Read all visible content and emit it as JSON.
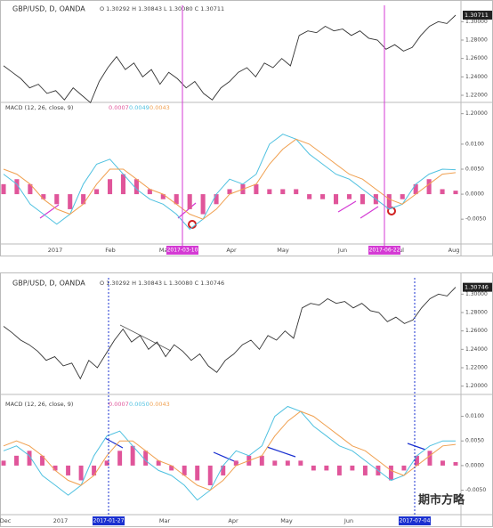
{
  "chart_data": [
    {
      "type": "line",
      "title": "GBP/USD, D, OANDA",
      "subtitle": "O 1.30292 H 1.30843 L 1.30080 C 1.30711",
      "color": "#333333",
      "values": [
        1.252,
        1.245,
        1.238,
        1.228,
        1.232,
        1.222,
        1.225,
        1.215,
        1.228,
        1.22,
        1.212,
        1.235,
        1.25,
        1.262,
        1.248,
        1.255,
        1.24,
        1.248,
        1.232,
        1.245,
        1.238,
        1.228,
        1.235,
        1.222,
        1.215,
        1.228,
        1.235,
        1.245,
        1.25,
        1.24,
        1.255,
        1.25,
        1.26,
        1.252,
        1.285,
        1.29,
        1.288,
        1.295,
        1.29,
        1.292,
        1.285,
        1.29,
        1.282,
        1.28,
        1.27,
        1.275,
        1.268,
        1.272,
        1.285,
        1.295,
        1.3,
        1.298,
        1.30711
      ],
      "value_label": "1.30711",
      "ylim": [
        1.19,
        1.31
      ],
      "yticks": [
        {
          "value": 1.3,
          "label": "1.30000"
        },
        {
          "value": 1.28,
          "label": "1.28000"
        },
        {
          "value": 1.26,
          "label": "1.26000"
        },
        {
          "value": 1.24,
          "label": "1.24000"
        },
        {
          "value": 1.22,
          "label": "1.22000"
        },
        {
          "value": 1.2,
          "label": "1.20000"
        }
      ]
    },
    {
      "type": "macd",
      "title": "MACD (12, 26, close, 9)",
      "histogram": {
        "color": "#e0559a",
        "value_label": "0.0007",
        "values": [
          0.002,
          0.003,
          0.002,
          -0.001,
          -0.002,
          -0.003,
          -0.002,
          0.001,
          0.003,
          0.004,
          0.003,
          0.001,
          -0.001,
          -0.002,
          -0.003,
          -0.004,
          -0.002,
          0.001,
          0.002,
          0.002,
          0.001,
          0.001,
          0.001,
          -0.001,
          -0.001,
          -0.002,
          -0.001,
          -0.002,
          -0.002,
          -0.003,
          -0.001,
          0.002,
          0.003,
          0.001,
          0.0007
        ]
      },
      "series": [
        {
          "color": "#4fc1e0",
          "value_label": "0.0049",
          "values": [
            0.004,
            0.002,
            -0.002,
            -0.004,
            -0.006,
            -0.004,
            0.002,
            0.006,
            0.007,
            0.004,
            0.001,
            -0.001,
            -0.002,
            -0.004,
            -0.007,
            -0.005,
            0.0,
            0.003,
            0.002,
            0.004,
            0.01,
            0.012,
            0.011,
            0.008,
            0.006,
            0.004,
            0.003,
            0.001,
            -0.001,
            -0.003,
            -0.002,
            0.002,
            0.004,
            0.005,
            0.0049
          ]
        },
        {
          "color": "#f0a050",
          "value_label": "0.0043",
          "values": [
            0.005,
            0.004,
            0.002,
            -0.001,
            -0.003,
            -0.004,
            -0.002,
            0.002,
            0.005,
            0.005,
            0.003,
            0.001,
            0.0,
            -0.002,
            -0.004,
            -0.005,
            -0.003,
            0.0,
            0.001,
            0.002,
            0.006,
            0.009,
            0.011,
            0.01,
            0.008,
            0.006,
            0.004,
            0.003,
            0.001,
            -0.001,
            -0.002,
            0.0,
            0.002,
            0.004,
            0.0043
          ]
        }
      ],
      "ylim": [
        -0.0096,
        0.0139
      ],
      "yticks": [
        {
          "value": 0.01,
          "label": "0.0100"
        },
        {
          "value": 0.005,
          "label": "0.0050"
        },
        {
          "value": 0,
          "label": "0.0000"
        },
        {
          "value": -0.005,
          "label": "-0.0050"
        }
      ],
      "x_labels": [
        "2017",
        "Feb",
        "Mar",
        "Apr",
        "May",
        "Jun",
        "Jul",
        "Aug"
      ],
      "markers": [
        "2017-03-10",
        "2017-06-22"
      ],
      "marker_color": "#d43ad4"
    },
    {
      "type": "line",
      "title": "GBP/USD, D, OANDA",
      "subtitle": "O 1.30292 H 1.30843 L 1.30080 C 1.30746",
      "color": "#333333",
      "values": [
        1.265,
        1.258,
        1.25,
        1.245,
        1.238,
        1.228,
        1.232,
        1.222,
        1.225,
        1.208,
        1.228,
        1.22,
        1.235,
        1.25,
        1.262,
        1.248,
        1.255,
        1.24,
        1.248,
        1.232,
        1.245,
        1.238,
        1.228,
        1.235,
        1.222,
        1.215,
        1.228,
        1.235,
        1.245,
        1.25,
        1.24,
        1.255,
        1.25,
        1.26,
        1.252,
        1.285,
        1.29,
        1.288,
        1.295,
        1.29,
        1.292,
        1.285,
        1.29,
        1.282,
        1.28,
        1.27,
        1.275,
        1.268,
        1.272,
        1.285,
        1.295,
        1.3,
        1.298,
        1.30746
      ],
      "value_label": "1.30746",
      "ylim": [
        1.19,
        1.31
      ],
      "yticks": [
        {
          "value": 1.3,
          "label": "1.30000"
        },
        {
          "value": 1.28,
          "label": "1.28000"
        },
        {
          "value": 1.26,
          "label": "1.26000"
        },
        {
          "value": 1.24,
          "label": "1.24000"
        },
        {
          "value": 1.22,
          "label": "1.22000"
        },
        {
          "value": 1.2,
          "label": "1.20000"
        }
      ]
    },
    {
      "type": "macd",
      "title": "MACD (12, 26, close, 9)",
      "histogram": {
        "color": "#e0559a",
        "value_label": "0.0007",
        "values": [
          0.001,
          0.002,
          0.003,
          0.002,
          -0.001,
          -0.002,
          -0.003,
          -0.002,
          0.001,
          0.003,
          0.004,
          0.003,
          0.001,
          -0.001,
          -0.002,
          -0.003,
          -0.004,
          -0.002,
          0.001,
          0.002,
          0.002,
          0.001,
          0.001,
          0.001,
          -0.001,
          -0.001,
          -0.002,
          -0.001,
          -0.002,
          -0.002,
          -0.003,
          -0.001,
          0.002,
          0.003,
          0.001,
          0.0007
        ]
      },
      "series": [
        {
          "color": "#4fc1e0",
          "value_label": "0.0050",
          "values": [
            0.003,
            0.004,
            0.002,
            -0.002,
            -0.004,
            -0.006,
            -0.004,
            0.002,
            0.006,
            0.007,
            0.004,
            0.001,
            -0.001,
            -0.002,
            -0.004,
            -0.007,
            -0.005,
            0.0,
            0.003,
            0.002,
            0.004,
            0.01,
            0.012,
            0.011,
            0.008,
            0.006,
            0.004,
            0.003,
            0.001,
            -0.001,
            -0.003,
            -0.002,
            0.002,
            0.004,
            0.005,
            0.005
          ]
        },
        {
          "color": "#f0a050",
          "value_label": "0.0043",
          "values": [
            0.004,
            0.005,
            0.004,
            0.002,
            -0.001,
            -0.003,
            -0.004,
            -0.002,
            0.002,
            0.005,
            0.005,
            0.003,
            0.001,
            0.0,
            -0.002,
            -0.004,
            -0.005,
            -0.003,
            0.0,
            0.001,
            0.002,
            0.006,
            0.009,
            0.011,
            0.01,
            0.008,
            0.006,
            0.004,
            0.003,
            0.001,
            -0.001,
            -0.002,
            0.0,
            0.002,
            0.004,
            0.0043
          ]
        }
      ],
      "ylim": [
        -0.0096,
        0.0139
      ],
      "yticks": [
        {
          "value": 0.01,
          "label": "0.0100"
        },
        {
          "value": 0.005,
          "label": "0.0050"
        },
        {
          "value": 0,
          "label": "0.0000"
        },
        {
          "value": -0.005,
          "label": "-0.0050"
        }
      ],
      "x_labels": [
        "Dec",
        "2017",
        "Mar",
        "Apr",
        "May",
        "Jun"
      ],
      "markers": [
        "2017-01-27",
        "2017-07-04"
      ],
      "marker_color": "#1a30d0",
      "watermark": "期市方略"
    }
  ]
}
